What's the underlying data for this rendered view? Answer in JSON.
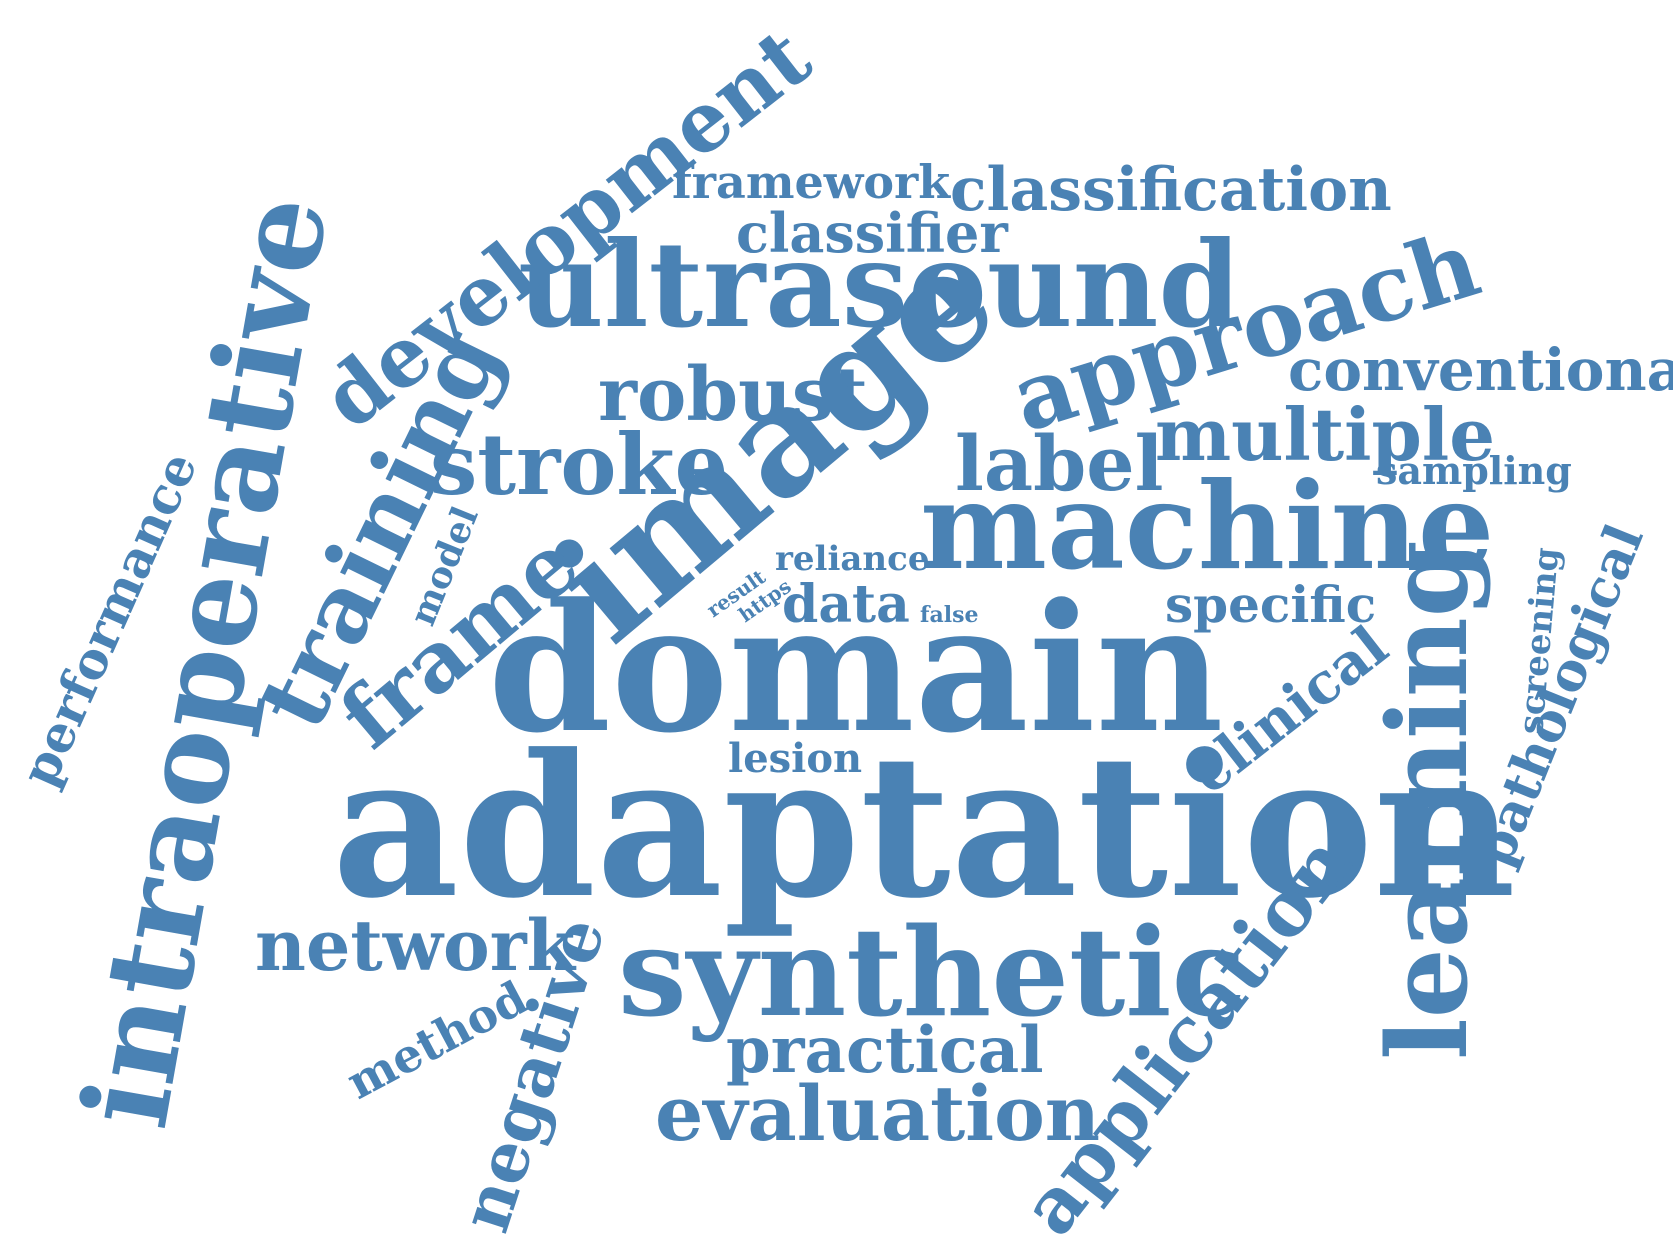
{
  "word_cloud": {
    "color": "#4a82b4",
    "words": [
      {
        "id": "framework",
        "text": "framework"
      },
      {
        "id": "classification",
        "text": "classification"
      },
      {
        "id": "classifier",
        "text": "classifier"
      },
      {
        "id": "development",
        "text": "development"
      },
      {
        "id": "ultrasound",
        "text": "ultrasound"
      },
      {
        "id": "approach",
        "text": "approach"
      },
      {
        "id": "conventional",
        "text": "conventional"
      },
      {
        "id": "robust",
        "text": "robust"
      },
      {
        "id": "image",
        "text": "image"
      },
      {
        "id": "multiple",
        "text": "multiple"
      },
      {
        "id": "sampling",
        "text": "sampling"
      },
      {
        "id": "intraoperative",
        "text": "intraoperative"
      },
      {
        "id": "stroke",
        "text": "stroke"
      },
      {
        "id": "label",
        "text": "label"
      },
      {
        "id": "machine",
        "text": "machine"
      },
      {
        "id": "training",
        "text": "training"
      },
      {
        "id": "performance",
        "text": "performance"
      },
      {
        "id": "model",
        "text": "model"
      },
      {
        "id": "frame",
        "text": "frame"
      },
      {
        "id": "reliance",
        "text": "reliance"
      },
      {
        "id": "result",
        "text": "result"
      },
      {
        "id": "https",
        "text": "https"
      },
      {
        "id": "data",
        "text": "data"
      },
      {
        "id": "false",
        "text": "false"
      },
      {
        "id": "specific",
        "text": "specific"
      },
      {
        "id": "screening",
        "text": "screening"
      },
      {
        "id": "pathological",
        "text": "pathological"
      },
      {
        "id": "domain",
        "text": "domain"
      },
      {
        "id": "clinical",
        "text": "clinical"
      },
      {
        "id": "learning",
        "text": "learning"
      },
      {
        "id": "lesion",
        "text": "lesion"
      },
      {
        "id": "adaptation",
        "text": "adaptation"
      },
      {
        "id": "network",
        "text": "network"
      },
      {
        "id": "negative",
        "text": "negative"
      },
      {
        "id": "synthetic",
        "text": "synthetic"
      },
      {
        "id": "method",
        "text": "method"
      },
      {
        "id": "practical",
        "text": "practical"
      },
      {
        "id": "application",
        "text": "application"
      },
      {
        "id": "evaluation",
        "text": "evaluation"
      }
    ]
  }
}
